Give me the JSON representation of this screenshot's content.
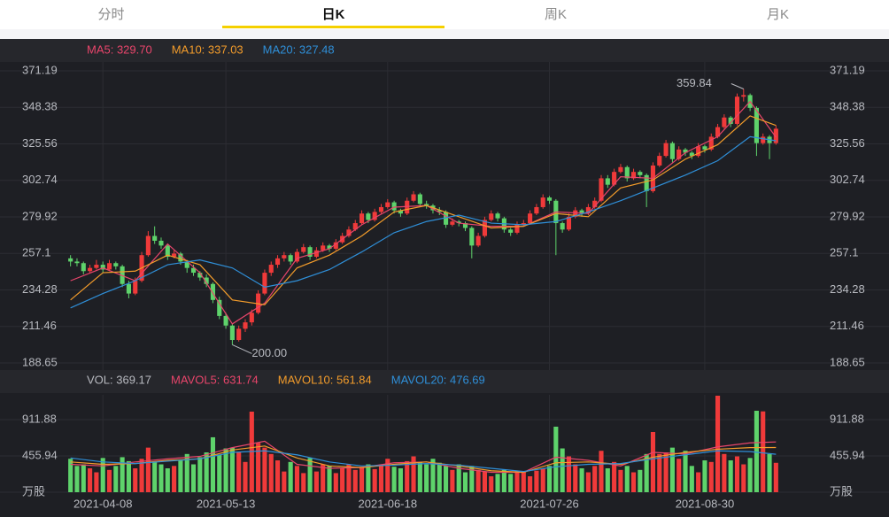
{
  "tabs": [
    "分时",
    "日K",
    "周K",
    "月K"
  ],
  "selected_tab": 1,
  "chart_data": [
    {
      "type": "candlestick",
      "colors": {
        "up": "#f03a3a",
        "down": "#5ed36b"
      },
      "categories": [
        null,
        null,
        null,
        null,
        null,
        "2021-04-08",
        null,
        null,
        null,
        null,
        null,
        null,
        null,
        null,
        null,
        null,
        null,
        null,
        null,
        null,
        null,
        null,
        null,
        null,
        "2021-05-13",
        null,
        null,
        null,
        null,
        null,
        null,
        null,
        null,
        null,
        null,
        null,
        null,
        null,
        null,
        null,
        null,
        null,
        null,
        null,
        null,
        null,
        null,
        null,
        null,
        "2021-06-18",
        null,
        null,
        null,
        null,
        null,
        null,
        null,
        null,
        null,
        null,
        null,
        null,
        null,
        null,
        null,
        null,
        null,
        null,
        null,
        null,
        null,
        null,
        null,
        null,
        "2021-07-26",
        null,
        null,
        null,
        null,
        null,
        null,
        null,
        null,
        null,
        null,
        null,
        null,
        null,
        null,
        null,
        null,
        null,
        null,
        null,
        null,
        null,
        null,
        null,
        "2021-08-30",
        null,
        null,
        null,
        null,
        null,
        null,
        null,
        null,
        null,
        null,
        null
      ],
      "candles": [
        [
          254,
          256,
          249,
          252
        ],
        [
          252,
          254,
          249,
          251
        ],
        [
          251,
          252,
          244,
          246
        ],
        [
          246,
          250,
          245,
          248
        ],
        [
          248,
          253,
          247,
          250
        ],
        [
          250,
          252,
          245,
          247
        ],
        [
          247,
          253,
          246,
          251
        ],
        [
          251,
          252,
          247,
          249
        ],
        [
          249,
          250,
          236,
          238
        ],
        [
          238,
          240,
          229,
          232
        ],
        [
          232,
          242,
          231,
          240
        ],
        [
          240,
          258,
          239,
          256
        ],
        [
          256,
          271,
          255,
          268
        ],
        [
          268,
          274,
          263,
          265
        ],
        [
          265,
          267,
          260,
          262
        ],
        [
          262,
          263,
          253,
          255
        ],
        [
          255,
          259,
          254,
          257
        ],
        [
          257,
          258,
          250,
          252
        ],
        [
          252,
          253,
          245,
          248
        ],
        [
          248,
          250,
          243,
          245
        ],
        [
          245,
          246,
          240,
          242
        ],
        [
          242,
          244,
          236,
          238
        ],
        [
          238,
          239,
          226,
          228
        ],
        [
          228,
          230,
          216,
          218
        ],
        [
          218,
          220,
          210,
          212
        ],
        [
          212,
          213,
          200,
          203
        ],
        [
          203,
          212,
          202,
          210
        ],
        [
          210,
          216,
          208,
          214
        ],
        [
          214,
          222,
          212,
          220
        ],
        [
          220,
          234,
          219,
          232
        ],
        [
          232,
          247,
          231,
          245
        ],
        [
          245,
          252,
          243,
          250
        ],
        [
          250,
          256,
          248,
          254
        ],
        [
          254,
          258,
          252,
          256
        ],
        [
          256,
          257,
          250,
          252
        ],
        [
          252,
          260,
          251,
          258
        ],
        [
          258,
          263,
          257,
          261
        ],
        [
          261,
          262,
          253,
          255
        ],
        [
          255,
          261,
          254,
          259
        ],
        [
          259,
          264,
          258,
          262
        ],
        [
          262,
          263,
          258,
          260
        ],
        [
          260,
          266,
          259,
          264
        ],
        [
          264,
          270,
          263,
          268
        ],
        [
          268,
          274,
          267,
          272
        ],
        [
          272,
          278,
          271,
          276
        ],
        [
          276,
          284,
          275,
          282
        ],
        [
          282,
          283,
          276,
          278
        ],
        [
          278,
          285,
          277,
          283
        ],
        [
          283,
          288,
          282,
          286
        ],
        [
          286,
          291,
          285,
          289
        ],
        [
          289,
          290,
          282,
          284
        ],
        [
          284,
          285,
          280,
          282
        ],
        [
          282,
          292,
          281,
          290
        ],
        [
          290,
          296,
          289,
          294
        ],
        [
          294,
          295,
          286,
          288
        ],
        [
          288,
          290,
          285,
          287
        ],
        [
          287,
          288,
          282,
          284
        ],
        [
          284,
          286,
          281,
          283
        ],
        [
          283,
          284,
          273,
          275
        ],
        [
          275,
          279,
          274,
          277
        ],
        [
          277,
          278,
          274,
          276
        ],
        [
          276,
          277,
          271,
          273
        ],
        [
          273,
          274,
          254,
          262
        ],
        [
          262,
          270,
          261,
          268
        ],
        [
          268,
          280,
          267,
          278
        ],
        [
          278,
          284,
          277,
          282
        ],
        [
          282,
          283,
          277,
          279
        ],
        [
          279,
          280,
          270,
          272
        ],
        [
          272,
          273,
          268,
          270
        ],
        [
          270,
          277,
          269,
          275
        ],
        [
          275,
          278,
          274,
          276
        ],
        [
          276,
          284,
          275,
          282
        ],
        [
          282,
          288,
          281,
          286
        ],
        [
          286,
          294,
          285,
          292
        ],
        [
          292,
          293,
          288,
          290
        ],
        [
          290,
          291,
          256,
          276
        ],
        [
          276,
          277,
          270,
          272
        ],
        [
          272,
          282,
          271,
          280
        ],
        [
          280,
          286,
          279,
          284
        ],
        [
          284,
          285,
          280,
          282
        ],
        [
          282,
          288,
          281,
          286
        ],
        [
          286,
          292,
          285,
          290
        ],
        [
          290,
          306,
          289,
          304
        ],
        [
          304,
          306,
          298,
          300
        ],
        [
          300,
          310,
          299,
          308
        ],
        [
          308,
          313,
          307,
          311
        ],
        [
          311,
          312,
          302,
          304
        ],
        [
          304,
          310,
          303,
          308
        ],
        [
          308,
          309,
          304,
          306
        ],
        [
          306,
          307,
          286,
          296
        ],
        [
          296,
          314,
          295,
          312
        ],
        [
          312,
          320,
          311,
          318
        ],
        [
          318,
          328,
          317,
          326
        ],
        [
          326,
          327,
          314,
          316
        ],
        [
          316,
          324,
          315,
          322
        ],
        [
          322,
          323,
          318,
          320
        ],
        [
          320,
          321,
          316,
          318
        ],
        [
          318,
          326,
          317,
          324
        ],
        [
          324,
          325,
          320,
          322
        ],
        [
          322,
          332,
          321,
          330
        ],
        [
          330,
          338,
          329,
          336
        ],
        [
          336,
          344,
          335,
          342
        ],
        [
          342,
          343,
          336,
          338
        ],
        [
          338,
          357,
          337,
          355
        ],
        [
          355,
          359.84,
          352,
          356
        ],
        [
          356,
          357,
          346,
          348
        ],
        [
          348,
          349,
          318,
          326
        ],
        [
          326,
          332,
          325,
          330
        ],
        [
          330,
          331,
          316,
          326
        ],
        [
          326,
          337,
          325,
          335
        ]
      ],
      "series": [
        {
          "name": "MA5: 329.70",
          "color": "#e8456b",
          "x": [
            0,
            5,
            10,
            15,
            20,
            25,
            30,
            35,
            40,
            45,
            50,
            55,
            60,
            65,
            70,
            75,
            80,
            85,
            90,
            95,
            100,
            105,
            109
          ],
          "values": [
            240,
            248,
            240,
            263,
            245,
            213,
            226,
            254,
            260,
            275,
            286,
            287,
            276,
            274,
            274,
            283,
            282,
            305,
            304,
            320,
            330,
            352,
            329.7
          ]
        },
        {
          "name": "MA10: 337.03",
          "color": "#f39c2b",
          "x": [
            0,
            5,
            10,
            15,
            20,
            25,
            30,
            35,
            40,
            45,
            50,
            55,
            60,
            65,
            70,
            75,
            80,
            85,
            90,
            95,
            100,
            105,
            109
          ],
          "values": [
            228,
            245,
            246,
            256,
            250,
            228,
            225,
            248,
            256,
            268,
            283,
            287,
            280,
            273,
            274,
            282,
            280,
            298,
            303,
            316,
            325,
            343,
            337.03
          ]
        },
        {
          "name": "MA20: 327.48",
          "color": "#2f8fd8",
          "x": [
            0,
            5,
            10,
            15,
            20,
            25,
            30,
            35,
            40,
            45,
            50,
            55,
            60,
            65,
            70,
            75,
            80,
            85,
            90,
            95,
            100,
            105,
            109
          ],
          "values": [
            223,
            232,
            240,
            250,
            253,
            248,
            236,
            240,
            247,
            258,
            270,
            277,
            281,
            276,
            275,
            277,
            283,
            290,
            298,
            306,
            315,
            330,
            327.48
          ]
        }
      ],
      "annotations": [
        {
          "text": "359.84",
          "candle": 104
        },
        {
          "text": "200.00",
          "candle": 25
        }
      ],
      "ylim": [
        184.2,
        376.7
      ],
      "yticks": [
        188.65,
        211.46,
        234.28,
        257.1,
        279.92,
        302.74,
        325.56,
        348.38,
        371.19
      ],
      "grid": true
    },
    {
      "type": "volume",
      "legend": "VOL: 369.17",
      "values": [
        420,
        330,
        350,
        300,
        250,
        430,
        280,
        330,
        440,
        390,
        300,
        420,
        560,
        380,
        350,
        300,
        330,
        410,
        480,
        350,
        440,
        500,
        690,
        470,
        550,
        560,
        500,
        380,
        1012,
        620,
        560,
        480,
        400,
        260,
        380,
        330,
        240,
        430,
        260,
        350,
        330,
        240,
        300,
        350,
        280,
        320,
        350,
        290,
        350,
        420,
        320,
        300,
        390,
        450,
        380,
        350,
        420,
        370,
        330,
        280,
        350,
        250,
        330,
        280,
        260,
        200,
        230,
        280,
        230,
        270,
        260,
        200,
        270,
        300,
        330,
        823,
        550,
        450,
        350,
        300,
        250,
        330,
        520,
        300,
        380,
        280,
        330,
        250,
        280,
        480,
        756,
        480,
        500,
        560,
        420,
        520,
        330,
        250,
        400,
        380,
        1212,
        480,
        400,
        450,
        350,
        430,
        1023,
        1015,
        480,
        369.17
      ],
      "series": [
        {
          "name": "MAVOL5: 631.74",
          "color": "#e8456b",
          "x": [
            0,
            5,
            10,
            15,
            20,
            25,
            30,
            35,
            40,
            45,
            50,
            55,
            60,
            65,
            70,
            75,
            80,
            85,
            90,
            95,
            100,
            105,
            109
          ],
          "values": [
            350,
            330,
            380,
            420,
            450,
            560,
            640,
            350,
            300,
            310,
            370,
            380,
            300,
            250,
            250,
            440,
            400,
            330,
            500,
            480,
            570,
            620,
            631.74
          ]
        },
        {
          "name": "MAVOL10: 561.84",
          "color": "#f39c2b",
          "x": [
            0,
            5,
            10,
            15,
            20,
            25,
            30,
            35,
            40,
            45,
            50,
            55,
            60,
            65,
            70,
            75,
            80,
            85,
            90,
            95,
            100,
            105,
            109
          ],
          "values": [
            380,
            350,
            360,
            400,
            420,
            530,
            580,
            430,
            330,
            310,
            350,
            380,
            330,
            270,
            250,
            370,
            380,
            350,
            440,
            500,
            540,
            560,
            561.84
          ]
        },
        {
          "name": "MAVOL20: 476.69",
          "color": "#2f8fd8",
          "x": [
            0,
            5,
            10,
            15,
            20,
            25,
            30,
            35,
            40,
            45,
            50,
            55,
            60,
            65,
            70,
            75,
            80,
            85,
            90,
            95,
            100,
            105,
            109
          ],
          "values": [
            430,
            380,
            360,
            390,
            420,
            500,
            520,
            470,
            380,
            330,
            340,
            360,
            340,
            300,
            260,
            320,
            350,
            360,
            420,
            470,
            520,
            510,
            476.69
          ]
        }
      ],
      "ylim": [
        0,
        1223
      ],
      "yticks": [
        {
          "value": 0,
          "label": "万股"
        },
        455.94,
        911.88
      ],
      "grid": true
    }
  ]
}
